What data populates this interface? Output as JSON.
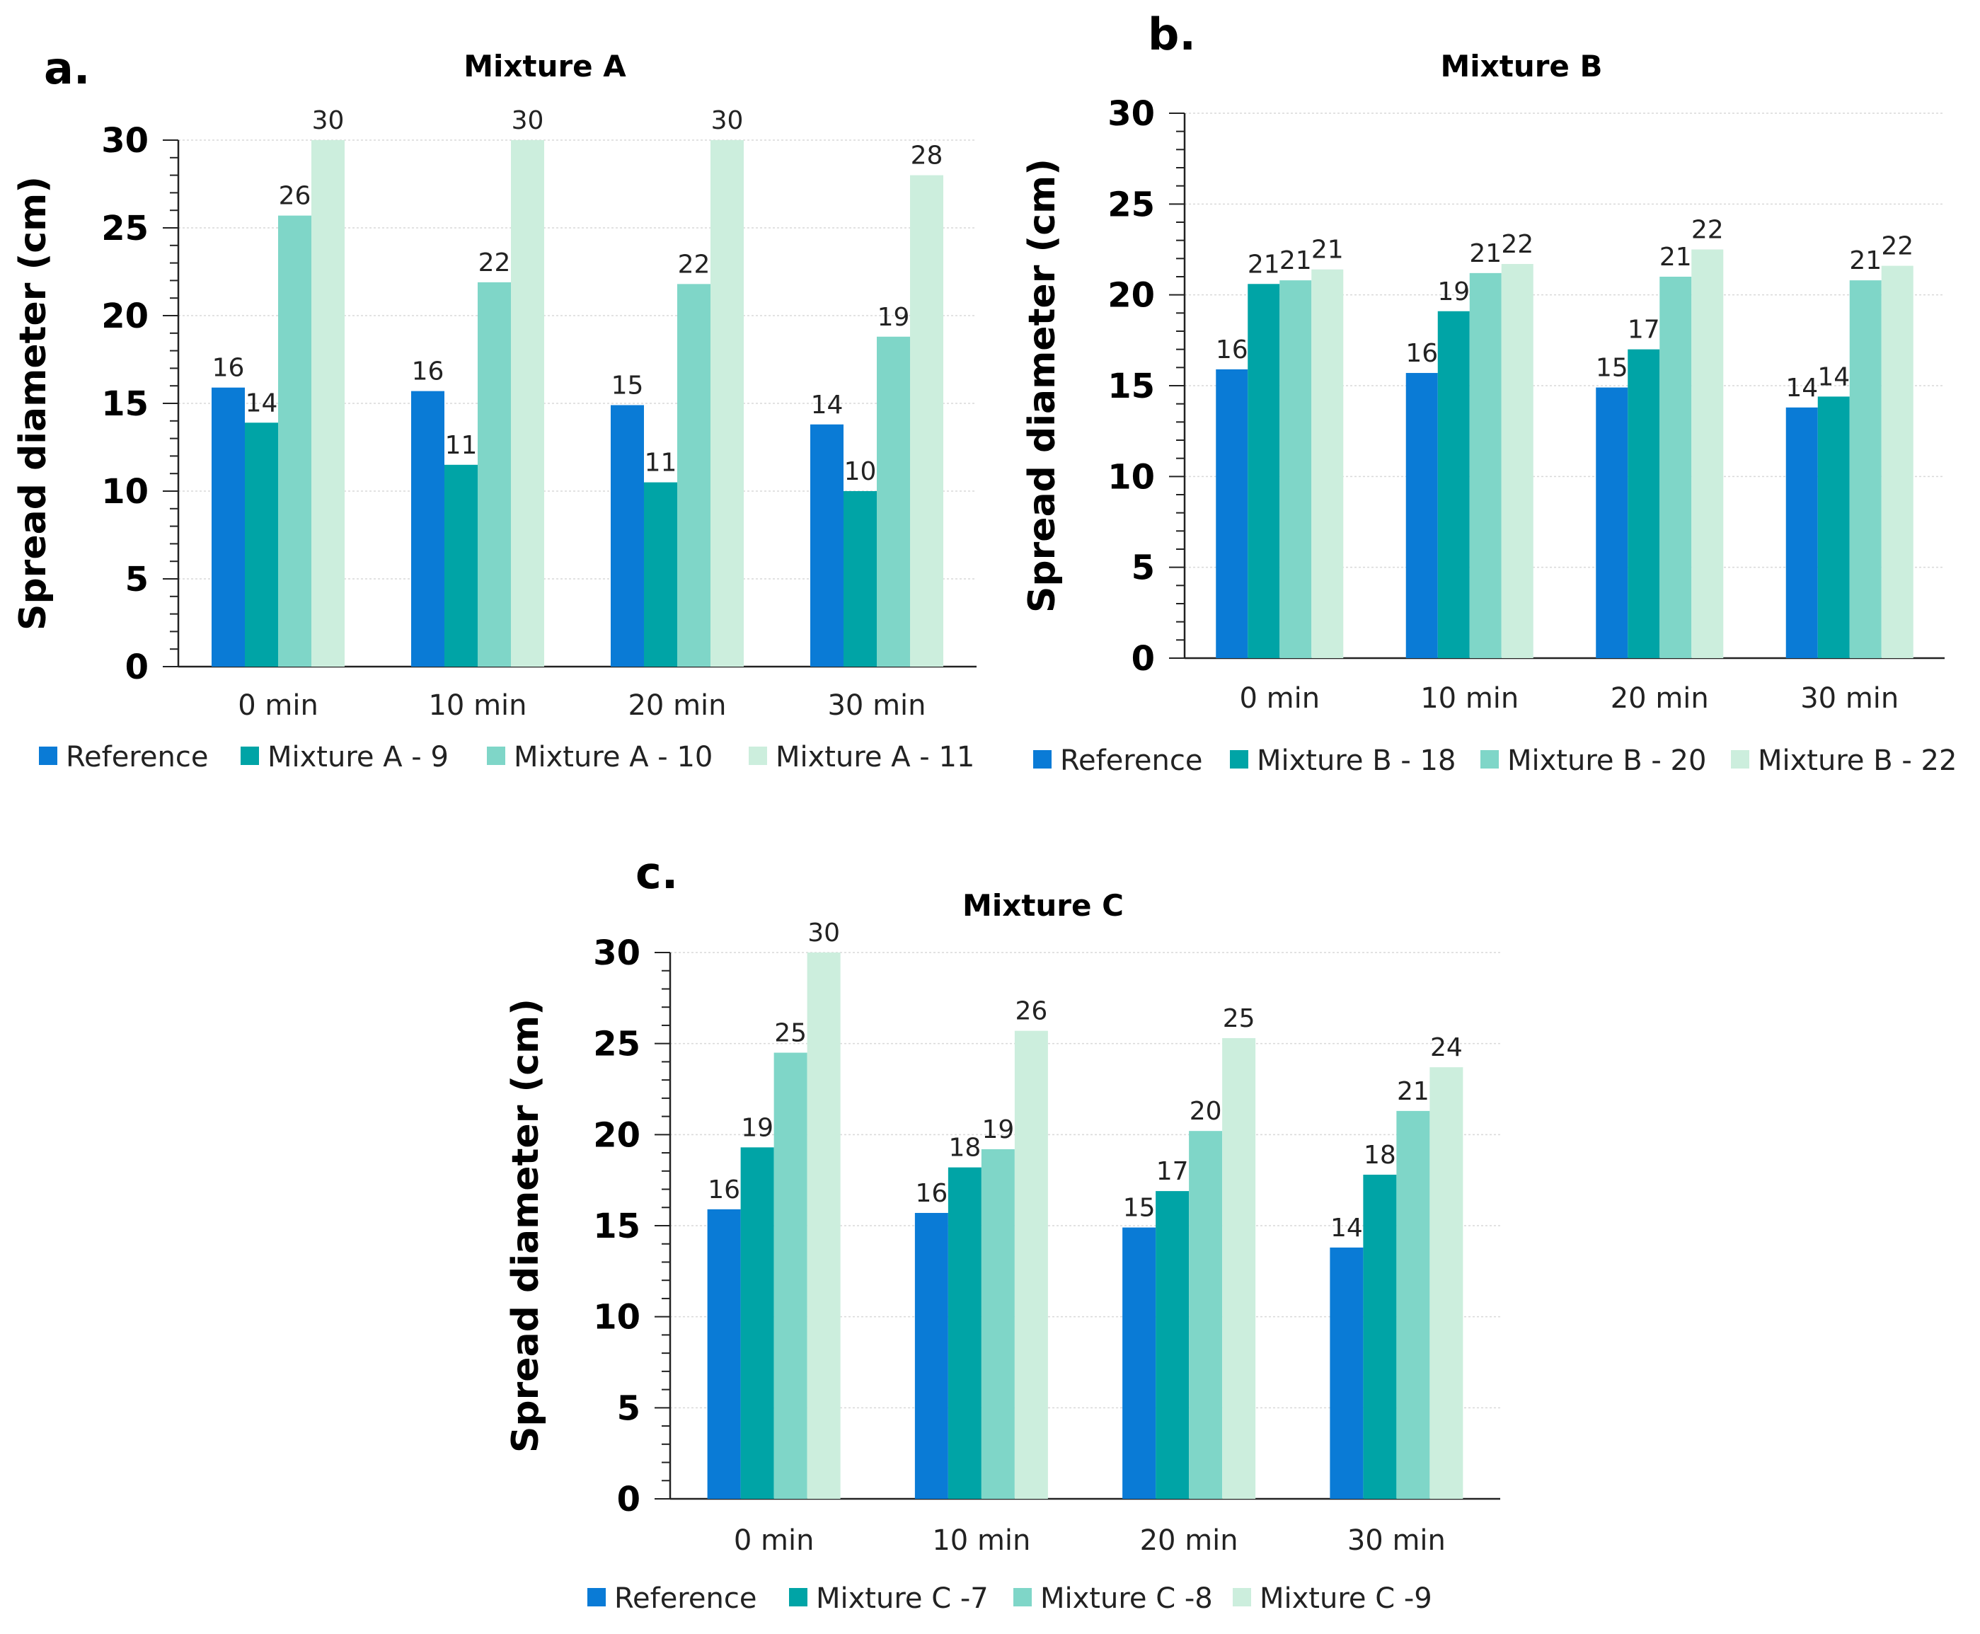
{
  "colors": [
    "#0a7bd6",
    "#00a4a6",
    "#7fd6c8",
    "#cceedd"
  ],
  "chart_data": [
    {
      "id": "a",
      "panel_label": "a.",
      "type": "bar",
      "title": "Mixture A",
      "ylabel": "Spread diameter (cm)",
      "xlabel": "",
      "ylim": [
        0,
        30
      ],
      "yticks": [
        "0",
        "5",
        "10",
        "15",
        "20",
        "25",
        "30"
      ],
      "categories": [
        "0 min",
        "10 min",
        "20 min",
        "30 min"
      ],
      "grid": true,
      "legend": "bottom",
      "series": [
        {
          "name": "Reference",
          "values": [
            15.9,
            15.7,
            14.9,
            13.8
          ],
          "labels": [
            "16",
            "16",
            "15",
            "14"
          ]
        },
        {
          "name": "Mixture A - 9",
          "values": [
            13.9,
            11.5,
            10.5,
            10.0
          ],
          "labels": [
            "14",
            "11",
            "11",
            "10"
          ]
        },
        {
          "name": "Mixture A - 10",
          "values": [
            25.7,
            21.9,
            21.8,
            18.8
          ],
          "labels": [
            "26",
            "22",
            "22",
            "19"
          ]
        },
        {
          "name": "Mixture A - 11",
          "values": [
            30,
            30,
            30,
            28
          ],
          "labels": [
            "30",
            "30",
            "30",
            "28"
          ]
        }
      ]
    },
    {
      "id": "b",
      "panel_label": "b.",
      "type": "bar",
      "title": "Mixture B",
      "ylabel": "Spread diameter (cm)",
      "xlabel": "",
      "ylim": [
        0,
        30
      ],
      "yticks": [
        "0",
        "5",
        "10",
        "15",
        "20",
        "25",
        "30"
      ],
      "categories": [
        "0 min",
        "10 min",
        "20 min",
        "30 min"
      ],
      "grid": true,
      "legend": "bottom",
      "series": [
        {
          "name": "Reference",
          "values": [
            15.9,
            15.7,
            14.9,
            13.8
          ],
          "labels": [
            "16",
            "16",
            "15",
            "14"
          ]
        },
        {
          "name": "Mixture  B - 18",
          "values": [
            20.6,
            19.1,
            17.0,
            14.4
          ],
          "labels": [
            "21",
            "19",
            "17",
            "14"
          ]
        },
        {
          "name": "Mixture  B - 20",
          "values": [
            20.8,
            21.2,
            21.0,
            20.8
          ],
          "labels": [
            "21",
            "21",
            "21",
            "21"
          ]
        },
        {
          "name": "Mixture  B - 22",
          "values": [
            21.4,
            21.7,
            22.5,
            21.6
          ],
          "labels": [
            "21",
            "22",
            "22",
            "22"
          ]
        }
      ]
    },
    {
      "id": "c",
      "panel_label": "c.",
      "type": "bar",
      "title": "Mixture C",
      "ylabel": "Spread diameter (cm)",
      "xlabel": "",
      "ylim": [
        0,
        30
      ],
      "yticks": [
        "0",
        "5",
        "10",
        "15",
        "20",
        "25",
        "30"
      ],
      "categories": [
        "0 min",
        "10 min",
        "20 min",
        "30 min"
      ],
      "grid": true,
      "legend": "bottom",
      "series": [
        {
          "name": "Reference",
          "values": [
            15.9,
            15.7,
            14.9,
            13.8
          ],
          "labels": [
            "16",
            "16",
            "15",
            "14"
          ]
        },
        {
          "name": "Mixture C -7",
          "values": [
            19.3,
            18.2,
            16.9,
            17.8
          ],
          "labels": [
            "19",
            "18",
            "17",
            "18"
          ]
        },
        {
          "name": "Mixture C -8",
          "values": [
            24.5,
            19.2,
            20.2,
            21.3
          ],
          "labels": [
            "25",
            "19",
            "20",
            "21"
          ]
        },
        {
          "name": "Mixture C -9",
          "values": [
            30,
            25.7,
            25.3,
            23.7
          ],
          "labels": [
            "30",
            "26",
            "25",
            "24"
          ]
        }
      ]
    }
  ]
}
